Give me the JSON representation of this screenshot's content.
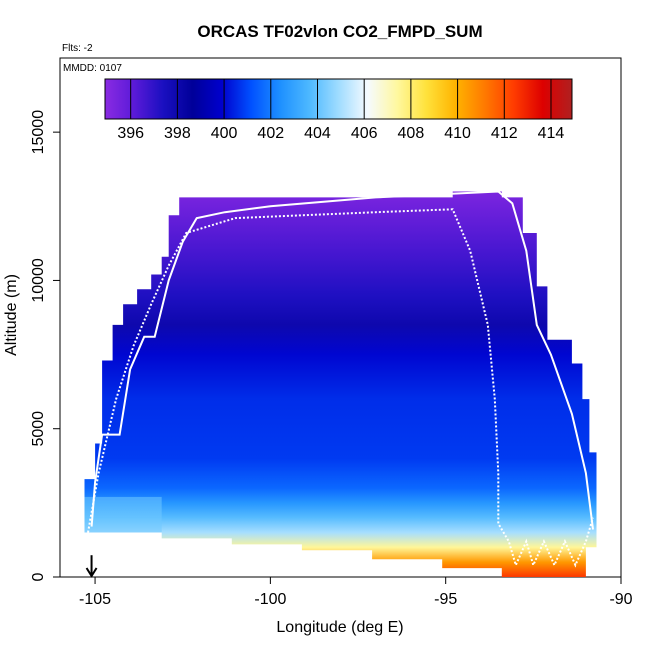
{
  "chart_data": {
    "type": "heatmap",
    "title": "ORCAS TF02vlon CO2_FMPD_SUM",
    "flts_label": "Flts: -2",
    "mmdd_label": "MMDD: 0107",
    "xlabel": "Longitude (deg E)",
    "ylabel": "Altitude (m)",
    "xlim": [
      -106,
      -90
    ],
    "ylim": [
      0,
      17500
    ],
    "x_ticks": [
      -105,
      -100,
      -95,
      -90
    ],
    "x_tick_labels": [
      "-105",
      "-100",
      "-95",
      "-90"
    ],
    "y_ticks": [
      0,
      5000,
      10000,
      15000
    ],
    "y_tick_labels": [
      "0",
      "5000",
      "10000",
      "15000"
    ],
    "colorbar": {
      "range": [
        394.9,
        414.9
      ],
      "ticks": [
        396,
        398,
        400,
        402,
        404,
        406,
        408,
        410,
        412,
        414
      ],
      "tick_labels": [
        "396",
        "398",
        "400",
        "402",
        "404",
        "406",
        "408",
        "410",
        "412",
        "414"
      ],
      "colors": [
        "#8a2be2",
        "#5a1ad8",
        "#1a0fc0",
        "#000099",
        "#0000cd",
        "#0050ff",
        "#1e90ff",
        "#4db8ff",
        "#9fdcff",
        "#f5faff",
        "#fff8a0",
        "#ffe23c",
        "#ffb400",
        "#ff7a00",
        "#ff3c00",
        "#dd0000",
        "#b02020"
      ]
    },
    "profile": [
      {
        "alt": 0,
        "co2": 412.5
      },
      {
        "alt": 500,
        "co2": 410.5
      },
      {
        "alt": 1000,
        "co2": 407.5
      },
      {
        "alt": 1500,
        "co2": 405.0
      },
      {
        "alt": 2000,
        "co2": 403.8
      },
      {
        "alt": 2500,
        "co2": 402.6
      },
      {
        "alt": 3000,
        "co2": 401.6
      },
      {
        "alt": 4000,
        "co2": 400.8
      },
      {
        "alt": 6000,
        "co2": 400.6
      },
      {
        "alt": 7500,
        "co2": 400.0
      },
      {
        "alt": 8500,
        "co2": 398.0
      },
      {
        "alt": 9500,
        "co2": 397.3
      },
      {
        "alt": 11000,
        "co2": 396.5
      },
      {
        "alt": 12500,
        "co2": 395.6
      },
      {
        "alt": 13000,
        "co2": 395.3
      }
    ],
    "outline": [
      [
        -105.3,
        1500
      ],
      [
        -105.3,
        3300
      ],
      [
        -105.0,
        3300
      ],
      [
        -105.0,
        4500
      ],
      [
        -104.8,
        4500
      ],
      [
        -104.8,
        7300
      ],
      [
        -104.5,
        7300
      ],
      [
        -104.5,
        8500
      ],
      [
        -104.2,
        8500
      ],
      [
        -104.2,
        9200
      ],
      [
        -103.8,
        9200
      ],
      [
        -103.8,
        9700
      ],
      [
        -103.4,
        9700
      ],
      [
        -103.4,
        10200
      ],
      [
        -103.1,
        10200
      ],
      [
        -103.1,
        10800
      ],
      [
        -102.9,
        10800
      ],
      [
        -102.9,
        12200
      ],
      [
        -102.6,
        12200
      ],
      [
        -102.6,
        12800
      ],
      [
        -94.8,
        12800
      ],
      [
        -94.8,
        13000
      ],
      [
        -93.4,
        13000
      ],
      [
        -93.4,
        12800
      ],
      [
        -92.8,
        12800
      ],
      [
        -92.8,
        11600
      ],
      [
        -92.4,
        11600
      ],
      [
        -92.4,
        9800
      ],
      [
        -92.1,
        9800
      ],
      [
        -92.1,
        8000
      ],
      [
        -91.4,
        8000
      ],
      [
        -91.4,
        7200
      ],
      [
        -91.1,
        7200
      ],
      [
        -91.1,
        6000
      ],
      [
        -90.9,
        6000
      ],
      [
        -90.9,
        4200
      ],
      [
        -90.7,
        4200
      ],
      [
        -90.7,
        1000
      ],
      [
        -91.0,
        1000
      ],
      [
        -91.0,
        0
      ],
      [
        -93.4,
        0
      ],
      [
        -93.4,
        300
      ],
      [
        -95.1,
        300
      ],
      [
        -95.1,
        600
      ],
      [
        -97.1,
        600
      ],
      [
        -97.1,
        900
      ],
      [
        -99.1,
        900
      ],
      [
        -99.1,
        1100
      ],
      [
        -101.1,
        1100
      ],
      [
        -101.1,
        1300
      ],
      [
        -103.1,
        1300
      ],
      [
        -103.1,
        1500
      ]
    ],
    "flight_track_1": [
      [
        -105.1,
        1700
      ],
      [
        -105.0,
        3200
      ],
      [
        -104.8,
        4800
      ],
      [
        -104.3,
        4800
      ],
      [
        -104.0,
        7000
      ],
      [
        -103.6,
        8100
      ],
      [
        -103.3,
        8100
      ],
      [
        -102.9,
        10000
      ],
      [
        -102.5,
        11300
      ],
      [
        -102.1,
        12100
      ],
      [
        -101.3,
        12300
      ],
      [
        -100.0,
        12500
      ],
      [
        -97.0,
        12800
      ],
      [
        -93.5,
        13000
      ],
      [
        -93.1,
        12600
      ],
      [
        -92.7,
        11000
      ],
      [
        -92.4,
        8500
      ],
      [
        -92.0,
        7500
      ],
      [
        -91.4,
        5500
      ],
      [
        -91.0,
        3500
      ],
      [
        -90.8,
        1600
      ]
    ],
    "flight_track_2": [
      [
        -105.2,
        1500
      ],
      [
        -104.9,
        3500
      ],
      [
        -104.4,
        6000
      ],
      [
        -103.9,
        7800
      ],
      [
        -103.4,
        9200
      ],
      [
        -102.9,
        10500
      ],
      [
        -102.4,
        11600
      ],
      [
        -101.0,
        12100
      ],
      [
        -97.0,
        12300
      ],
      [
        -94.8,
        12400
      ],
      [
        -94.3,
        11000
      ],
      [
        -93.8,
        8500
      ],
      [
        -93.6,
        6000
      ],
      [
        -93.5,
        3500
      ],
      [
        -93.5,
        1800
      ],
      [
        -93.2,
        1200
      ],
      [
        -93.0,
        400
      ],
      [
        -92.7,
        1200
      ],
      [
        -92.5,
        400
      ],
      [
        -92.2,
        1200
      ],
      [
        -91.9,
        400
      ],
      [
        -91.6,
        1200
      ],
      [
        -91.3,
        400
      ],
      [
        -91.0,
        1200
      ],
      [
        -90.8,
        2000
      ]
    ],
    "arrow_lon": -105.1,
    "arrow_alt_range": [
      600,
      0
    ]
  }
}
